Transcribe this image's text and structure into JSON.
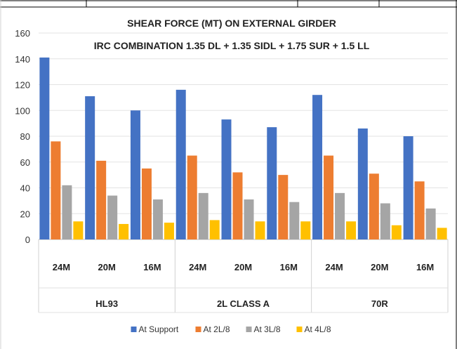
{
  "chart_data": {
    "type": "bar",
    "title": "SHEAR FORCE (MT) ON EXTERNAL GIRDER",
    "subtitle": "IRC COMBINATION 1.35 DL + 1.35 SIDL + 1.75 SUR + 1.5 LL",
    "xlabel": "",
    "ylabel": "",
    "ylim": [
      0,
      160
    ],
    "yticks": [
      0,
      20,
      40,
      60,
      80,
      100,
      120,
      140,
      160
    ],
    "grid": true,
    "legend_position": "bottom",
    "groups": [
      {
        "label": "HL93",
        "categories": [
          "24M",
          "20M",
          "16M"
        ]
      },
      {
        "label": "2L CLASS A",
        "categories": [
          "24M",
          "20M",
          "16M"
        ]
      },
      {
        "label": "70R",
        "categories": [
          "24M",
          "20M",
          "16M"
        ]
      }
    ],
    "series": [
      {
        "name": "At Support",
        "color": "#4472C4",
        "values": [
          141,
          111,
          100,
          116,
          93,
          87,
          112,
          86,
          80
        ]
      },
      {
        "name": "At 2L/8",
        "color": "#ED7D31",
        "values": [
          76,
          61,
          55,
          65,
          52,
          50,
          65,
          51,
          45
        ]
      },
      {
        "name": "At 3L/8",
        "color": "#A5A5A5",
        "values": [
          42,
          34,
          31,
          36,
          31,
          29,
          36,
          28,
          24
        ]
      },
      {
        "name": "At 4L/8",
        "color": "#FFC000",
        "values": [
          14,
          12,
          13,
          15,
          14,
          14,
          14,
          11,
          9
        ]
      }
    ]
  }
}
